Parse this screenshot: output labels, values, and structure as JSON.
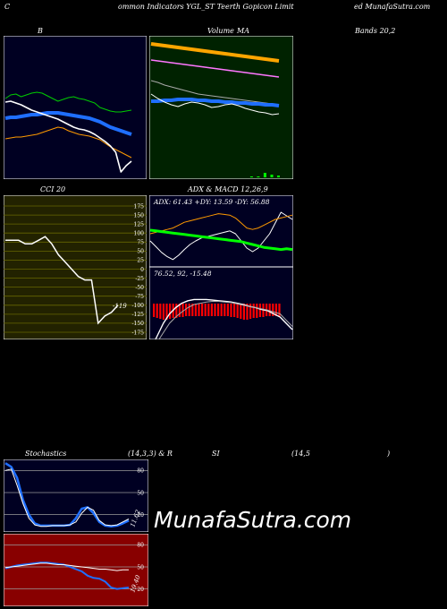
{
  "header": {
    "left": "C",
    "middle": "ommon  Indicators YGL_ST Teerth Gopicon  Limit",
    "right": "ed MunafaSutra.com"
  },
  "titles": {
    "bollinger": "B",
    "ma": "MA",
    "ma_prefix": "Volume",
    "bands": "Bands 20,2",
    "cci": "CCI 20",
    "adx_macd": "ADX  & MACD 12,26,9",
    "stoch": "Stochastics",
    "stoch_params": "(14,3,3) & R",
    "rsi": "SI",
    "rsi_params": "(14,5",
    "rsi_close": ")"
  },
  "adx": {
    "readout": "ADX: 61.43  +DY: 13.59 -DY: 56.88"
  },
  "macd": {
    "readout": "76.52,  92,  -15.48"
  },
  "cci_value": "-119",
  "stoch_value": "11.62",
  "rsi_value": "19.40",
  "brand": "MunafaSutra.com",
  "chart_data": [
    {
      "type": "line",
      "name": "bollinger",
      "series": [
        {
          "color": "#00cc00",
          "values": [
            70,
            66,
            65,
            68,
            66,
            64,
            63,
            64,
            67,
            70,
            73,
            71,
            69,
            68,
            70,
            71,
            73,
            75,
            80,
            82,
            84,
            85,
            85,
            84,
            83
          ]
        },
        {
          "color": "#1f6fff",
          "values": [
            92,
            91,
            91,
            90,
            89,
            88,
            88,
            87,
            86,
            86,
            86,
            87,
            88,
            89,
            90,
            91,
            92,
            94,
            96,
            99,
            102,
            104,
            106,
            108,
            110
          ]
        },
        {
          "color": "#ff9a00",
          "values": [
            115,
            114,
            113,
            113,
            112,
            111,
            110,
            108,
            106,
            104,
            102,
            103,
            106,
            108,
            110,
            111,
            112,
            114,
            116,
            120,
            124,
            127,
            130,
            133,
            136
          ]
        },
        {
          "color": "#ffffff",
          "values": [
            74,
            73,
            75,
            77,
            80,
            83,
            85,
            87,
            89,
            91,
            93,
            96,
            99,
            102,
            104,
            105,
            107,
            110,
            114,
            118,
            123,
            130,
            152,
            145,
            140
          ]
        }
      ]
    },
    {
      "type": "line",
      "name": "ma",
      "series": [
        {
          "color": "#ffa500",
          "values": [
            54,
            55,
            56,
            57,
            58,
            59,
            60,
            61,
            62,
            63,
            64,
            65,
            66,
            67,
            68,
            69,
            70,
            71,
            72,
            73
          ]
        },
        {
          "color": "#ff77ff",
          "values": [
            72,
            73,
            74,
            75,
            76,
            77,
            78,
            79,
            80,
            81,
            82,
            83,
            84,
            85,
            86,
            87,
            88,
            89,
            90,
            91
          ]
        },
        {
          "color": "#aaaaaa",
          "values": [
            95,
            97,
            100,
            102,
            104,
            106,
            108,
            110,
            111,
            112,
            113,
            114,
            115,
            116,
            117,
            118,
            119,
            120,
            121,
            122
          ]
        },
        {
          "color": "#1f6fff",
          "values": [
            118,
            118,
            117,
            117,
            116,
            116,
            116,
            117,
            117,
            118,
            118,
            119,
            119,
            120,
            120,
            121,
            121,
            122,
            122,
            123
          ]
        },
        {
          "color": "#ffffff",
          "values": [
            110,
            115,
            119,
            122,
            124,
            121,
            119,
            120,
            122,
            125,
            124,
            122,
            121,
            123,
            126,
            128,
            130,
            131,
            133,
            132
          ]
        }
      ],
      "volume": [
        0,
        0,
        0,
        0,
        0,
        0,
        0,
        0,
        0,
        0,
        0,
        0,
        0,
        0,
        0,
        1,
        1,
        5,
        3,
        2
      ]
    },
    {
      "type": "line",
      "name": "cci",
      "ticks": [
        "175",
        "150",
        "125",
        "100",
        "75",
        "50",
        "25",
        "0",
        "-25",
        "-50",
        "-75",
        "-100",
        "-125",
        "-150",
        "-175"
      ],
      "values": [
        80,
        80,
        80,
        70,
        70,
        80,
        90,
        70,
        40,
        20,
        0,
        -20,
        -30,
        -30,
        -150,
        -130,
        -120,
        -100
      ]
    },
    {
      "type": "line",
      "name": "adx",
      "series": [
        {
          "color": "#ffffff",
          "values": [
            30,
            22,
            14,
            8,
            4,
            10,
            18,
            25,
            30,
            34,
            36,
            38,
            40,
            42,
            44,
            40,
            30,
            20,
            15,
            20,
            30,
            40,
            55,
            70,
            65,
            60
          ]
        },
        {
          "color": "#ff9a00",
          "values": [
            40,
            42,
            44,
            46,
            48,
            52,
            56,
            58,
            60,
            62,
            64,
            66,
            68,
            67,
            66,
            62,
            55,
            48,
            46,
            48,
            52,
            56,
            60,
            62,
            64,
            66
          ]
        },
        {
          "color": "#00ff00",
          "values": [
            45,
            44,
            43,
            42,
            41,
            40,
            39,
            38,
            37,
            36,
            35,
            34,
            33,
            32,
            31,
            30,
            29,
            27,
            25,
            23,
            21,
            20,
            19,
            18,
            19,
            18
          ]
        }
      ]
    },
    {
      "type": "bar",
      "name": "macd",
      "histogram": [
        -15,
        -16,
        -17,
        -18,
        -18,
        -17,
        -16,
        -16,
        -15,
        -15,
        -14,
        -14,
        -14,
        -14,
        -14,
        -14,
        -14,
        -14,
        -14,
        -14,
        -14,
        -14,
        -14,
        -14,
        -15,
        -15,
        -16,
        -17,
        -18,
        -18,
        -17,
        -16,
        -16,
        -15,
        -15,
        -14,
        -14,
        -14,
        -14,
        -14
      ],
      "series": [
        {
          "color": "#ffffff",
          "values": [
            -50,
            -30,
            -10,
            5,
            15,
            22,
            26,
            28,
            28,
            28,
            27,
            26,
            25,
            24,
            22,
            20,
            17,
            15,
            12,
            10,
            5,
            0,
            -10,
            -20
          ]
        },
        {
          "color": "#aaaaaa",
          "values": [
            -60,
            -40,
            -25,
            -10,
            0,
            8,
            15,
            20,
            22,
            24,
            25,
            25,
            24,
            23,
            21,
            19,
            17,
            15,
            13,
            11,
            8,
            5,
            -5,
            -15
          ]
        }
      ]
    },
    {
      "type": "line",
      "name": "stochastics",
      "ticks": [
        "80",
        "50",
        "20"
      ],
      "series": [
        {
          "color": "#1f6fff",
          "values": [
            90,
            85,
            70,
            40,
            20,
            8,
            5,
            5,
            5,
            5,
            5,
            6,
            15,
            28,
            30,
            22,
            10,
            5,
            4,
            5,
            8,
            12
          ]
        },
        {
          "color": "#ffffff",
          "values": [
            80,
            82,
            60,
            35,
            15,
            6,
            4,
            4,
            5,
            5,
            5,
            6,
            10,
            22,
            30,
            26,
            12,
            6,
            5,
            6,
            10,
            14
          ]
        }
      ]
    },
    {
      "type": "line",
      "name": "rsi",
      "ticks": [
        "80",
        "50",
        "20"
      ],
      "series": [
        {
          "color": "#1f6fff",
          "values": [
            48,
            50,
            52,
            53,
            54,
            55,
            56,
            56,
            55,
            54,
            53,
            50,
            47,
            44,
            38,
            35,
            34,
            30,
            22,
            20,
            21,
            22
          ]
        },
        {
          "color": "#ffffff",
          "values": [
            49,
            50,
            51,
            52,
            53,
            54,
            55,
            55,
            54,
            53,
            53,
            52,
            51,
            50,
            49,
            48,
            47,
            47,
            46,
            45,
            46,
            46
          ]
        }
      ]
    }
  ]
}
